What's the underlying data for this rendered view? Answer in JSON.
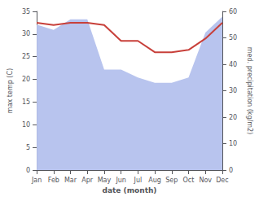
{
  "chart_data": {
    "type": "line",
    "categories": [
      "Jan",
      "Feb",
      "Mar",
      "Apr",
      "May",
      "Jun",
      "Jul",
      "Aug",
      "Sep",
      "Oct",
      "Nov",
      "Dec"
    ],
    "series": [
      {
        "type": "area",
        "color": "#b8c4ee",
        "axis": "y2",
        "values": [
          55,
          53,
          57,
          57,
          38,
          38,
          35,
          33,
          33,
          35,
          52,
          58
        ]
      },
      {
        "type": "line",
        "color": "#c8403a",
        "values": [
          32.5,
          32.0,
          32.5,
          32.5,
          32.0,
          28.5,
          28.5,
          26.0,
          26.0,
          26.5,
          29.0,
          32.5
        ]
      }
    ],
    "xlabel": "date (month)",
    "ylabel": "max temp (C)",
    "y2label": "med. precipitation (kg/m2)",
    "ylim": [
      0,
      35
    ],
    "yticks": [
      0,
      5,
      10,
      15,
      20,
      25,
      30,
      35
    ],
    "y2lim": [
      0,
      60
    ],
    "y2ticks": [
      0,
      10,
      20,
      30,
      40,
      50,
      60
    ],
    "grid": false
  }
}
